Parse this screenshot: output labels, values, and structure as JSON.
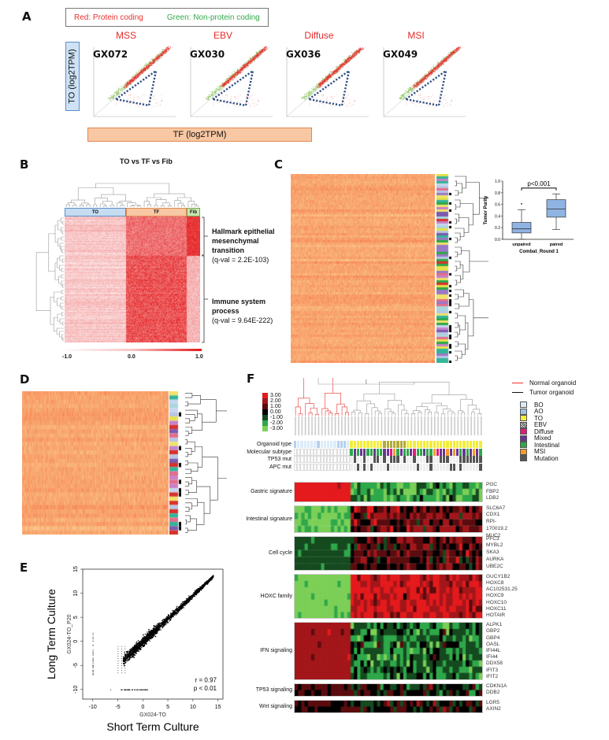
{
  "panel_letters": [
    "A",
    "B",
    "C",
    "D",
    "E",
    "F"
  ],
  "panelA": {
    "legend_red": "Red: Protein coding",
    "legend_green": "Green: Non-protein coding",
    "y_axis_label": "TO (log2TPM)",
    "x_axis_label": "TF (log2TPM)",
    "colors": {
      "protein_coding": "#e8312e",
      "non_protein_coding": "#7dbb4a",
      "highlight_box": "#2f4f86",
      "y_box": "#cfe2f5",
      "x_box": "#f8c7a3"
    },
    "plots": [
      {
        "subtype": "MSS",
        "sample": "GX072"
      },
      {
        "subtype": "EBV",
        "sample": "GX030"
      },
      {
        "subtype": "Diffuse",
        "sample": "GX036"
      },
      {
        "subtype": "MSI",
        "sample": "GX049"
      }
    ]
  },
  "panelB": {
    "title": "TO vs TF vs Fib",
    "groups": [
      {
        "label": "TO",
        "color": "#c6dcf1",
        "border": "#5a8fc9"
      },
      {
        "label": "TF",
        "color": "#f8c7a3",
        "border": "#e08a4e"
      },
      {
        "label": "Fib",
        "color": "#c9e5b2",
        "border": "#6fae4b"
      }
    ],
    "annotations": [
      {
        "label": "Hallmark epithelial mesenchymal transition",
        "qval": "(q-val = 2.2E-103)"
      },
      {
        "label": "Immune system process",
        "qval": "(q-val = 9.64E-222)"
      }
    ],
    "scale_ticks": [
      "-1.0",
      "0.0",
      "1.0"
    ]
  },
  "panelC": {
    "chart_data": {
      "type": "box",
      "title": "",
      "significance": "p<0.001",
      "xlabel": "Combat_Round 1",
      "ylabel": "Tumor Purity",
      "ylim": [
        0.0,
        1.0
      ],
      "yticks": [
        "0.0",
        "0.2",
        "0.4",
        "0.6",
        "0.8",
        "1.0"
      ],
      "categories": [
        "unpaired",
        "paired"
      ],
      "boxes": [
        {
          "name": "unpaired",
          "min": 0.0,
          "q1": 0.11,
          "median": 0.18,
          "q3": 0.29,
          "max": 0.51,
          "outliers": [
            0.61
          ]
        },
        {
          "name": "paired",
          "min": 0.17,
          "q1": 0.38,
          "median": 0.52,
          "q3": 0.68,
          "max": 0.78,
          "outliers": []
        }
      ],
      "box_color": "#8fb4e3"
    }
  },
  "panelE": {
    "chart_data": {
      "type": "scatter",
      "xlabel": "GX024-TO",
      "ylabel": "GX024-TO_P20",
      "outer_xlabel": "Short Term Culture",
      "outer_ylabel": "Long Term Culture",
      "xlim": [
        -12,
        16
      ],
      "ylim": [
        -12,
        15
      ],
      "xticks": [
        "-10",
        "-5",
        "0",
        "5",
        "10",
        "15"
      ],
      "yticks": [
        "-10",
        "-5",
        "0",
        "5",
        "10",
        "15"
      ],
      "annotation_r": "r = 0.97",
      "annotation_p": "p < 0.01",
      "trend": {
        "slope": 0.97,
        "intercept": 0
      }
    }
  },
  "panelF": {
    "color_scale": [
      "3.00",
      "2.00",
      "1.00",
      "0.00",
      "-1.00",
      "-2.00",
      "-3.00"
    ],
    "color_scale_colors": [
      "#e41a1c",
      "#a3161a",
      "#5a0c0e",
      "#000000",
      "#154a1f",
      "#2ea84a",
      "#7ccf57"
    ],
    "legend_lines": [
      {
        "label": "Normal organoid",
        "color": "#e8312e"
      },
      {
        "label": "Tumor organoid",
        "color": "#111111"
      }
    ],
    "legend_swatches": [
      {
        "label": "BO",
        "color": "#dcebf8"
      },
      {
        "label": "AO",
        "color": "#9cc4e4"
      },
      {
        "label": "TO",
        "color": "#f2ec3a"
      },
      {
        "label": "EBV",
        "color": "pattern"
      },
      {
        "label": "Diffuse",
        "color": "#e6197a"
      },
      {
        "label": "Mixed",
        "color": "#6a3592"
      },
      {
        "label": "Intestinal",
        "color": "#2ea84a"
      },
      {
        "label": "MSI",
        "color": "#f39c28"
      },
      {
        "label": "Mutation",
        "color": "#555555"
      }
    ],
    "annotation_rows": [
      "Organoid type",
      "Molecular subtype",
      "TP53 mut",
      "APC mut"
    ],
    "n_normal": 17,
    "n_tumor": 40,
    "blocks": [
      {
        "name": "Gastric signature",
        "genes": [
          "PGC",
          "FBP2",
          "LDB2"
        ]
      },
      {
        "name": "Intestinal signature",
        "genes": [
          "SLC6A7",
          "CDX1",
          "RPI-170019.2",
          "MUC2"
        ]
      },
      {
        "name": "Cell cycle",
        "genes": [
          "PFC3",
          "MYBL2",
          "SKA3",
          "AURKA",
          "UBE2C"
        ]
      },
      {
        "name": "HOXC family",
        "genes": [
          "GUCY1B2",
          "HOXC8",
          "AC102531.25",
          "HOXC9",
          "HOXC10",
          "HOXC11",
          "HOTAIR"
        ]
      },
      {
        "name": "IFN signaling",
        "genes": [
          "ALPK1",
          "GBP2",
          "GBP4",
          "OASL",
          "IFI44L",
          "IFI44",
          "DDX58",
          "IFIT3",
          "IFIT2"
        ]
      },
      {
        "name": "TP53 signaling",
        "genes": [
          "CDKN1A",
          "DDB2"
        ]
      },
      {
        "name": "Wnt signaling",
        "genes": [
          "LGR5",
          "AXIN2"
        ]
      }
    ]
  }
}
